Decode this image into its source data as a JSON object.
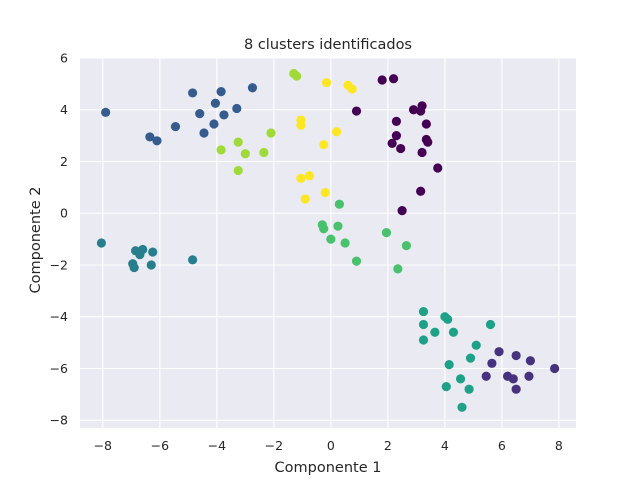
{
  "chart_data": {
    "type": "scatter",
    "title": "8 clusters identificados",
    "xlabel": "Componente 1",
    "ylabel": "Componente 2",
    "xlim": [
      -8.8,
      8.6
    ],
    "ylim": [
      -8.3,
      6.0
    ],
    "xticks": [
      -8,
      -6,
      -4,
      -2,
      0,
      2,
      4,
      6,
      8
    ],
    "yticks": [
      -8,
      -6,
      -4,
      -2,
      0,
      2,
      4,
      6
    ],
    "grid": true,
    "colormap": "viridis",
    "background_color": "#eaeaf2",
    "grid_color": "#ffffff",
    "series": [
      {
        "color": "#440154",
        "points": [
          [
            1.8,
            5.15
          ],
          [
            2.2,
            5.2
          ],
          [
            0.9,
            3.95
          ],
          [
            2.9,
            4.0
          ],
          [
            3.2,
            4.15
          ],
          [
            3.15,
            3.95
          ],
          [
            2.3,
            3.55
          ],
          [
            3.35,
            3.45
          ],
          [
            2.3,
            3.0
          ],
          [
            3.35,
            2.85
          ],
          [
            3.4,
            2.75
          ],
          [
            2.15,
            2.7
          ],
          [
            2.45,
            2.5
          ],
          [
            3.2,
            2.35
          ],
          [
            3.75,
            1.75
          ],
          [
            3.15,
            0.85
          ],
          [
            2.5,
            0.1
          ]
        ]
      },
      {
        "color": "#46327e",
        "points": [
          [
            5.9,
            -5.35
          ],
          [
            6.5,
            -5.5
          ],
          [
            7.0,
            -5.7
          ],
          [
            5.65,
            -5.8
          ],
          [
            7.85,
            -6.0
          ],
          [
            6.2,
            -6.3
          ],
          [
            5.45,
            -6.3
          ],
          [
            6.4,
            -6.4
          ],
          [
            6.95,
            -6.3
          ],
          [
            6.5,
            -6.8
          ]
        ]
      },
      {
        "color": "#365c8d",
        "points": [
          [
            -7.9,
            3.9
          ],
          [
            -4.85,
            4.65
          ],
          [
            -3.85,
            4.7
          ],
          [
            -2.75,
            4.85
          ],
          [
            -4.05,
            4.25
          ],
          [
            -3.3,
            4.05
          ],
          [
            -4.6,
            3.85
          ],
          [
            -3.75,
            3.8
          ],
          [
            -4.1,
            3.45
          ],
          [
            -5.45,
            3.35
          ],
          [
            -4.45,
            3.1
          ],
          [
            -6.35,
            2.95
          ],
          [
            -6.1,
            2.8
          ]
        ]
      },
      {
        "color": "#277f8e",
        "points": [
          [
            -8.05,
            -1.15
          ],
          [
            -6.6,
            -1.4
          ],
          [
            -6.85,
            -1.45
          ],
          [
            -6.25,
            -1.5
          ],
          [
            -6.7,
            -1.6
          ],
          [
            -6.95,
            -1.95
          ],
          [
            -6.3,
            -2.0
          ],
          [
            -6.9,
            -2.1
          ],
          [
            -4.85,
            -1.8
          ]
        ]
      },
      {
        "color": "#1fa187",
        "points": [
          [
            3.25,
            -3.8
          ],
          [
            5.6,
            -4.3
          ],
          [
            4.0,
            -4.0
          ],
          [
            4.1,
            -4.1
          ],
          [
            3.25,
            -4.3
          ],
          [
            3.65,
            -4.6
          ],
          [
            4.3,
            -4.6
          ],
          [
            3.25,
            -4.9
          ],
          [
            5.1,
            -5.1
          ],
          [
            4.9,
            -5.6
          ],
          [
            4.15,
            -5.85
          ],
          [
            4.55,
            -6.4
          ],
          [
            4.05,
            -6.7
          ],
          [
            4.85,
            -6.8
          ],
          [
            4.6,
            -7.5
          ]
        ]
      },
      {
        "color": "#4ac16d",
        "points": [
          [
            0.3,
            0.35
          ],
          [
            -0.3,
            -0.45
          ],
          [
            0.25,
            -0.5
          ],
          [
            -0.25,
            -0.6
          ],
          [
            1.95,
            -0.75
          ],
          [
            0.0,
            -1.0
          ],
          [
            0.5,
            -1.15
          ],
          [
            2.65,
            -1.25
          ],
          [
            0.9,
            -1.85
          ],
          [
            2.35,
            -2.15
          ]
        ]
      },
      {
        "color": "#a0da39",
        "points": [
          [
            -1.3,
            5.4
          ],
          [
            -1.2,
            5.3
          ],
          [
            -2.1,
            3.1
          ],
          [
            -3.25,
            2.75
          ],
          [
            -3.85,
            2.45
          ],
          [
            -3.0,
            2.3
          ],
          [
            -2.35,
            2.35
          ],
          [
            -3.25,
            1.65
          ]
        ]
      },
      {
        "color": "#fde725",
        "points": [
          [
            -0.15,
            5.05
          ],
          [
            0.6,
            4.95
          ],
          [
            0.75,
            4.8
          ],
          [
            -1.05,
            3.6
          ],
          [
            -1.05,
            3.4
          ],
          [
            0.2,
            3.15
          ],
          [
            -0.25,
            2.65
          ],
          [
            -0.75,
            1.45
          ],
          [
            -1.05,
            1.35
          ],
          [
            -0.2,
            0.8
          ],
          [
            -0.9,
            0.55
          ]
        ]
      }
    ]
  }
}
